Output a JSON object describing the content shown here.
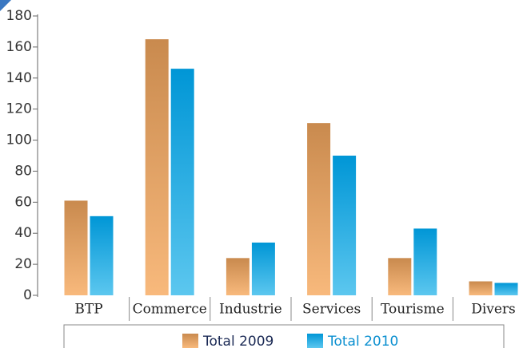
{
  "chart_data": {
    "type": "bar",
    "categories": [
      "BTP",
      "Commerce",
      "Industrie",
      "Services",
      "Tourisme",
      "Divers"
    ],
    "series": [
      {
        "name": "Total 2009",
        "color": "#d38f52",
        "values": [
          61,
          165,
          24,
          111,
          24,
          9
        ]
      },
      {
        "name": "Total 2010",
        "color": "#0aa3df",
        "values": [
          51,
          146,
          34,
          90,
          43,
          8
        ]
      }
    ],
    "ylim": [
      0,
      180
    ],
    "yticks": [
      0,
      20,
      40,
      60,
      80,
      100,
      120,
      140,
      160,
      180
    ]
  }
}
